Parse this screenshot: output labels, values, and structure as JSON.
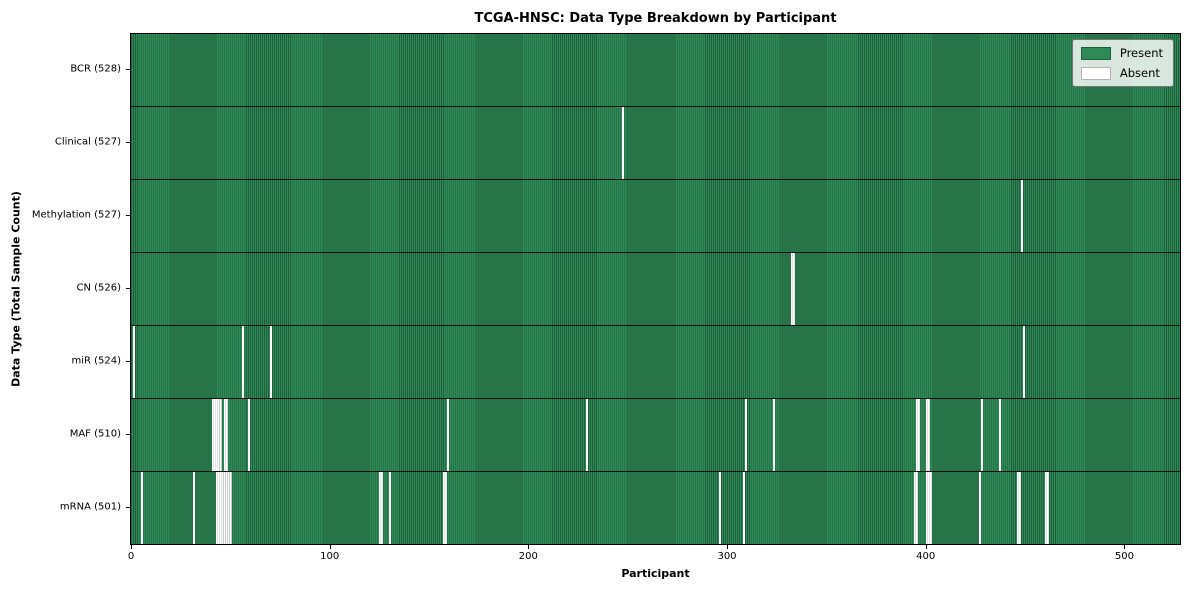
{
  "chart_data": {
    "type": "heatmap",
    "title": "TCGA-HNSC: Data Type Breakdown by Participant",
    "xlabel": "Participant",
    "ylabel": "Data Type (Total Sample Count)",
    "x_range": [
      0,
      528
    ],
    "x_ticks": [
      0,
      100,
      200,
      300,
      400,
      500
    ],
    "total_participants": 528,
    "grid": false,
    "legend_position": "upper right",
    "legend": [
      {
        "label": "Present",
        "color": "#2e8b57"
      },
      {
        "label": "Absent",
        "color": "#ffffff"
      }
    ],
    "colors": {
      "present": "#2e8b57",
      "present_edge": "#1e5e3a",
      "absent": "#ffffff",
      "absent_edge": "#c6cdc6",
      "row_separator": "#101010"
    },
    "rows": [
      {
        "name": "bcr",
        "label": "BCR (528)",
        "present_count": 528,
        "absent_participants": []
      },
      {
        "name": "clinical",
        "label": "Clinical (527)",
        "present_count": 527,
        "absent_participants": [
          247
        ]
      },
      {
        "name": "methylation",
        "label": "Methylation (527)",
        "present_count": 527,
        "absent_participants": [
          448
        ]
      },
      {
        "name": "cn",
        "label": "CN (526)",
        "present_count": 526,
        "absent_participants": [
          332,
          333
        ]
      },
      {
        "name": "mir",
        "label": "miR (524)",
        "present_count": 524,
        "absent_participants": [
          1,
          56,
          70,
          449
        ]
      },
      {
        "name": "maf",
        "label": "MAF (510)",
        "present_count": 510,
        "absent_participants": [
          41,
          42,
          43,
          44,
          45,
          47,
          48,
          59,
          159,
          229,
          309,
          323,
          395,
          396,
          400,
          401,
          428,
          437
        ]
      },
      {
        "name": "mrna",
        "label": "mRNA (501)",
        "present_count": 501,
        "absent_participants": [
          5,
          31,
          43,
          44,
          45,
          46,
          47,
          48,
          49,
          50,
          125,
          126,
          130,
          157,
          158,
          296,
          308,
          394,
          395,
          400,
          401,
          402,
          427,
          446,
          447,
          460,
          461
        ]
      }
    ]
  }
}
